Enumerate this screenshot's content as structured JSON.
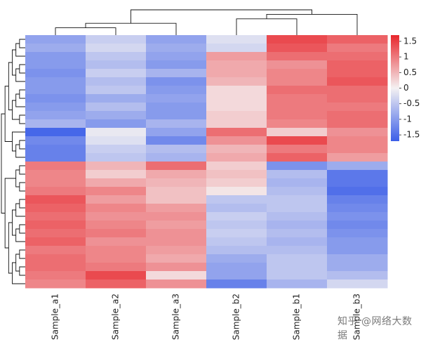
{
  "chart_data": {
    "type": "heatmap",
    "title": "",
    "columns": [
      "Sample_a1",
      "Sample_a2",
      "Sample_a3",
      "Sample_b2",
      "Sample_b1",
      "Sample_b3"
    ],
    "row_count": 30,
    "values": [
      [
        -0.9,
        -0.4,
        -0.9,
        -0.2,
        1.4,
        1.2
      ],
      [
        -0.8,
        -0.3,
        -0.8,
        -0.3,
        1.3,
        1.0
      ],
      [
        -1.0,
        -0.5,
        -0.9,
        0.7,
        1.1,
        1.1
      ],
      [
        -1.0,
        -0.6,
        -1.0,
        0.6,
        0.8,
        1.2
      ],
      [
        -1.1,
        -0.4,
        -0.7,
        0.6,
        0.9,
        1.2
      ],
      [
        -1.0,
        -0.6,
        -1.1,
        0.5,
        0.9,
        1.3
      ],
      [
        -1.0,
        -0.5,
        -1.0,
        0.2,
        1.1,
        1.1
      ],
      [
        -1.1,
        -0.8,
        -0.9,
        0.2,
        1.0,
        1.1
      ],
      [
        -1.0,
        -0.6,
        -1.0,
        0.2,
        1.0,
        1.0
      ],
      [
        -0.9,
        -0.8,
        -1.0,
        0.3,
        1.0,
        1.1
      ],
      [
        -0.7,
        -1.0,
        -0.7,
        0.3,
        0.9,
        1.1
      ],
      [
        -1.6,
        -0.1,
        -0.9,
        1.1,
        0.3,
        0.8
      ],
      [
        -1.2,
        -0.2,
        -1.2,
        0.8,
        1.4,
        0.9
      ],
      [
        -1.3,
        -0.4,
        -0.6,
        0.5,
        1.0,
        0.9
      ],
      [
        -1.3,
        -0.5,
        -0.7,
        0.6,
        1.2,
        0.7
      ],
      [
        1.0,
        0.5,
        1.1,
        0.3,
        -1.1,
        -0.8
      ],
      [
        0.9,
        0.3,
        0.6,
        0.4,
        -0.6,
        -1.4
      ],
      [
        0.9,
        0.6,
        0.5,
        0.3,
        -0.7,
        -1.4
      ],
      [
        1.0,
        0.9,
        0.4,
        0.1,
        -0.6,
        -1.5
      ],
      [
        1.3,
        0.7,
        0.4,
        -0.5,
        -0.5,
        -1.3
      ],
      [
        1.2,
        0.9,
        0.7,
        -0.6,
        -0.5,
        -1.2
      ],
      [
        1.1,
        0.8,
        0.8,
        -0.4,
        -0.6,
        -1.1
      ],
      [
        1.2,
        0.9,
        0.7,
        -0.5,
        -0.7,
        -1.2
      ],
      [
        1.1,
        1.0,
        0.8,
        -0.4,
        -0.6,
        -1.1
      ],
      [
        1.2,
        0.8,
        0.8,
        -0.5,
        -0.7,
        -1.0
      ],
      [
        1.0,
        0.9,
        0.7,
        -0.6,
        -0.6,
        -1.0
      ],
      [
        1.1,
        0.9,
        0.6,
        -0.8,
        -0.5,
        -0.8
      ],
      [
        1.1,
        1.0,
        0.8,
        -0.9,
        -0.5,
        -0.8
      ],
      [
        1.0,
        1.4,
        0.2,
        -0.9,
        -0.5,
        -0.6
      ],
      [
        0.9,
        1.2,
        0.8,
        -1.3,
        -0.7,
        -0.3
      ]
    ],
    "vmin": -1.7,
    "vmax": 1.7,
    "colormap": {
      "low": "#3b5ee8",
      "mid": "#f4f1f2",
      "high": "#e8262c"
    },
    "colorbar_ticks": [
      "1.5",
      "1",
      "0.5",
      "0",
      "-0.5",
      "-1",
      "-1.5"
    ],
    "colorbar_tick_values": [
      1.5,
      1,
      0.5,
      0,
      -0.5,
      -1,
      -1.5
    ],
    "column_dendrogram": [
      [
        0,
        1
      ],
      [
        6,
        2
      ],
      [
        3,
        4
      ],
      [
        8,
        5
      ],
      [
        7,
        9
      ]
    ],
    "row_dendrogram": [
      [
        0,
        1
      ],
      [
        30,
        2
      ],
      [
        3,
        4
      ],
      [
        32,
        5
      ],
      [
        31,
        33
      ],
      [
        6,
        7
      ],
      [
        35,
        8
      ],
      [
        9,
        10
      ],
      [
        36,
        37
      ],
      [
        34,
        38
      ],
      [
        12,
        13
      ],
      [
        40,
        14
      ],
      [
        11,
        41
      ],
      [
        39,
        42
      ],
      [
        15,
        16
      ],
      [
        17,
        18
      ],
      [
        44,
        45
      ],
      [
        19,
        20
      ],
      [
        47,
        21
      ],
      [
        22,
        23
      ],
      [
        49,
        24
      ],
      [
        48,
        50
      ],
      [
        25,
        26
      ],
      [
        27,
        28
      ],
      [
        52,
        53
      ],
      [
        54,
        29
      ],
      [
        51,
        55
      ],
      [
        46,
        56
      ],
      [
        43,
        57
      ]
    ]
  },
  "watermark": "知乎 @网络大数据"
}
